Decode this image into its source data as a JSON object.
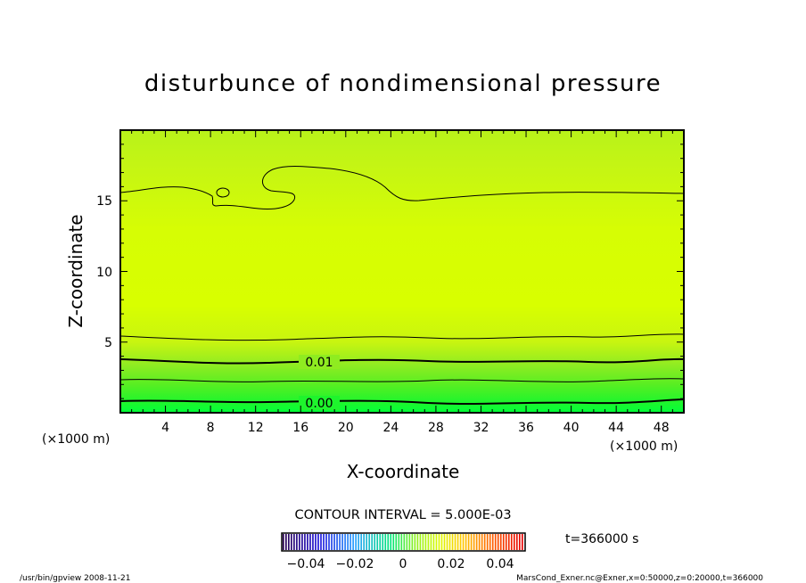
{
  "chart_data": {
    "type": "heatmap",
    "title": "disturbunce of nondimensional pressure",
    "xlabel": "X-coordinate",
    "ylabel": "Z-coordinate",
    "x_unit_left": "(×1000 m)",
    "x_unit_right": "(×1000 m)",
    "xlim": [
      0,
      50
    ],
    "ylim": [
      0,
      20
    ],
    "x_ticks": [
      "4",
      "8",
      "12",
      "16",
      "20",
      "24",
      "28",
      "32",
      "36",
      "40",
      "44",
      "48"
    ],
    "y_ticks": [
      "5",
      "10",
      "15"
    ],
    "contour_interval_text": "CONTOUR INTERVAL = 5.000E-03",
    "contour_labels": [
      {
        "text": "0.01",
        "x": 17,
        "z": 3.5
      },
      {
        "text": "0.00",
        "x": 17,
        "z": 0.7
      }
    ],
    "colorbar": {
      "ticks": [
        "−0.04",
        "−0.02",
        "0",
        "0.02",
        "0.04"
      ],
      "range": [
        -0.05,
        0.05
      ]
    },
    "time_label": "t=366000 s",
    "colors": {
      "low": "#00ff38",
      "mid": "#80f21a",
      "high": "#d8ff00"
    }
  },
  "footer": {
    "left": "/usr/bin/gpview  2008-11-21",
    "right": "MarsCond_Exner.nc@Exner,x=0:50000,z=0:20000,t=366000"
  }
}
